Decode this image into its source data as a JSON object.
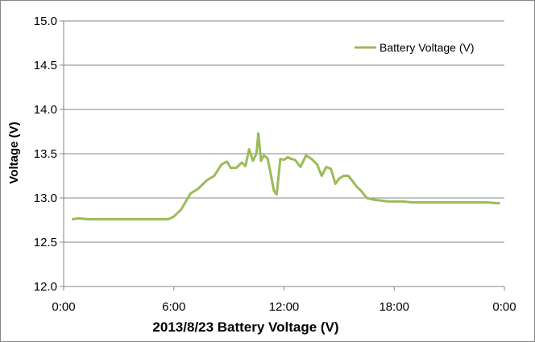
{
  "chart_data": {
    "type": "line",
    "title": "",
    "xlabel": "2013/8/23  Battery Voltage (V)",
    "ylabel": "Voltage (V)",
    "ylim": [
      12.0,
      15.0
    ],
    "y_ticks": [
      "12.0",
      "12.5",
      "13.0",
      "13.5",
      "14.0",
      "14.5",
      "15.0"
    ],
    "xlim_hours": [
      0,
      24
    ],
    "x_ticks": [
      "0:00",
      "6:00",
      "12:00",
      "18:00",
      "0:00"
    ],
    "grid": "horizontal",
    "legend_position": "top-right",
    "series": [
      {
        "name": "Battery Voltage (V)",
        "color": "#9bbb59",
        "x": [
          0.5,
          0.8,
          1.3,
          2,
          3,
          4,
          5,
          5.7,
          6,
          6.4,
          6.9,
          7.3,
          7.8,
          8.2,
          8.6,
          8.9,
          9.1,
          9.4,
          9.7,
          9.9,
          10.1,
          10.3,
          10.5,
          10.6,
          10.75,
          10.9,
          11.1,
          11.25,
          11.45,
          11.6,
          11.8,
          12.0,
          12.2,
          12.4,
          12.6,
          12.9,
          13.2,
          13.5,
          13.8,
          14.05,
          14.3,
          14.55,
          14.8,
          15.0,
          15.25,
          15.5,
          15.7,
          15.95,
          16.2,
          16.5,
          16.9,
          17.3,
          17.7,
          18.0,
          18.5,
          19,
          20,
          21,
          22,
          23,
          23.7
        ],
        "y": [
          12.76,
          12.77,
          12.76,
          12.76,
          12.76,
          12.76,
          12.76,
          12.76,
          12.79,
          12.87,
          13.05,
          13.1,
          13.2,
          13.25,
          13.38,
          13.41,
          13.34,
          13.34,
          13.4,
          13.36,
          13.55,
          13.42,
          13.5,
          13.73,
          13.42,
          13.48,
          13.45,
          13.3,
          13.08,
          13.04,
          13.44,
          13.43,
          13.46,
          13.44,
          13.43,
          13.35,
          13.48,
          13.44,
          13.38,
          13.25,
          13.35,
          13.33,
          13.16,
          13.22,
          13.25,
          13.25,
          13.2,
          13.13,
          13.08,
          13.0,
          12.98,
          12.97,
          12.96,
          12.96,
          12.96,
          12.95,
          12.95,
          12.95,
          12.95,
          12.95,
          12.94
        ]
      }
    ]
  }
}
